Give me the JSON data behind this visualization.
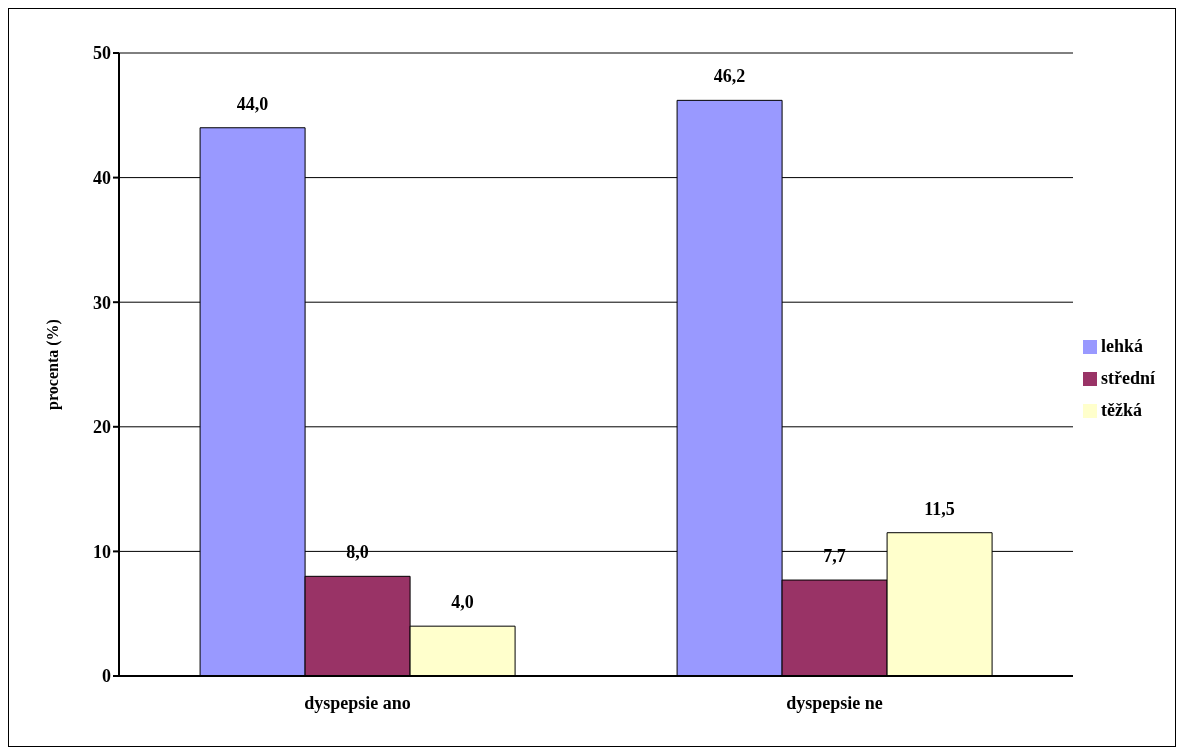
{
  "chart_data": {
    "type": "bar",
    "ylabel": "procenta (%)",
    "categories": [
      "dyspepsie ano",
      "dyspepsie ne"
    ],
    "series": [
      {
        "name": "lehká",
        "color": "#9999ff",
        "values": [
          44.0,
          46.2
        ],
        "value_labels": [
          "44,0",
          "46,2"
        ]
      },
      {
        "name": "střední",
        "color": "#993366",
        "values": [
          8.0,
          7.7
        ],
        "value_labels": [
          "8,0",
          "7,7"
        ]
      },
      {
        "name": "těžká",
        "color": "#ffffcc",
        "values": [
          4.0,
          11.5
        ],
        "value_labels": [
          "4,0",
          "11,5"
        ]
      }
    ],
    "ylim": [
      0,
      50
    ],
    "yticks": [
      0,
      10,
      20,
      30,
      40,
      50
    ],
    "grid": "y",
    "legend": "right"
  }
}
